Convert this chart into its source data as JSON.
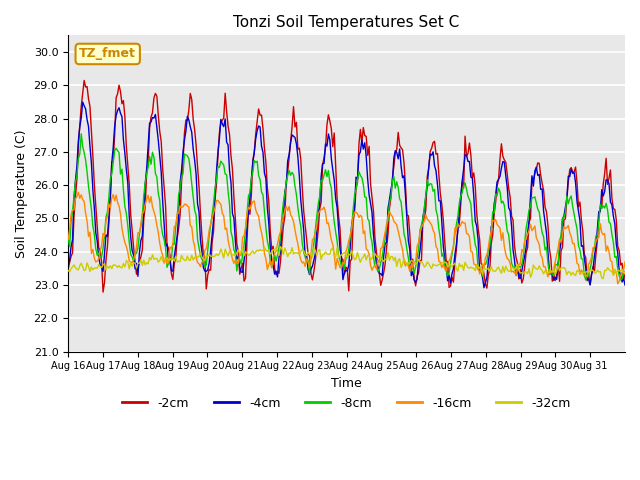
{
  "title": "Tonzi Soil Temperatures Set C",
  "xlabel": "Time",
  "ylabel": "Soil Temperature (C)",
  "ylim": [
    21.0,
    30.5
  ],
  "yticks": [
    21.0,
    22.0,
    23.0,
    24.0,
    25.0,
    26.0,
    27.0,
    28.0,
    29.0,
    30.0
  ],
  "x_labels": [
    "Aug 16",
    "Aug 17",
    "Aug 18",
    "Aug 19",
    "Aug 20",
    "Aug 21",
    "Aug 22",
    "Aug 23",
    "Aug 24",
    "Aug 25",
    "Aug 26",
    "Aug 27",
    "Aug 28",
    "Aug 29",
    "Aug 30",
    "Aug 31"
  ],
  "series_colors": [
    "#cc0000",
    "#0000cc",
    "#00cc00",
    "#ff8800",
    "#cccc00"
  ],
  "series_labels": [
    "-2cm",
    "-4cm",
    "-8cm",
    "-16cm",
    "-32cm"
  ],
  "annotation_text": "TZ_fmet",
  "annotation_color": "#cc8800",
  "annotation_bg": "#ffffcc",
  "plot_bg": "#e8e8e8",
  "n_points": 384,
  "days": 16
}
